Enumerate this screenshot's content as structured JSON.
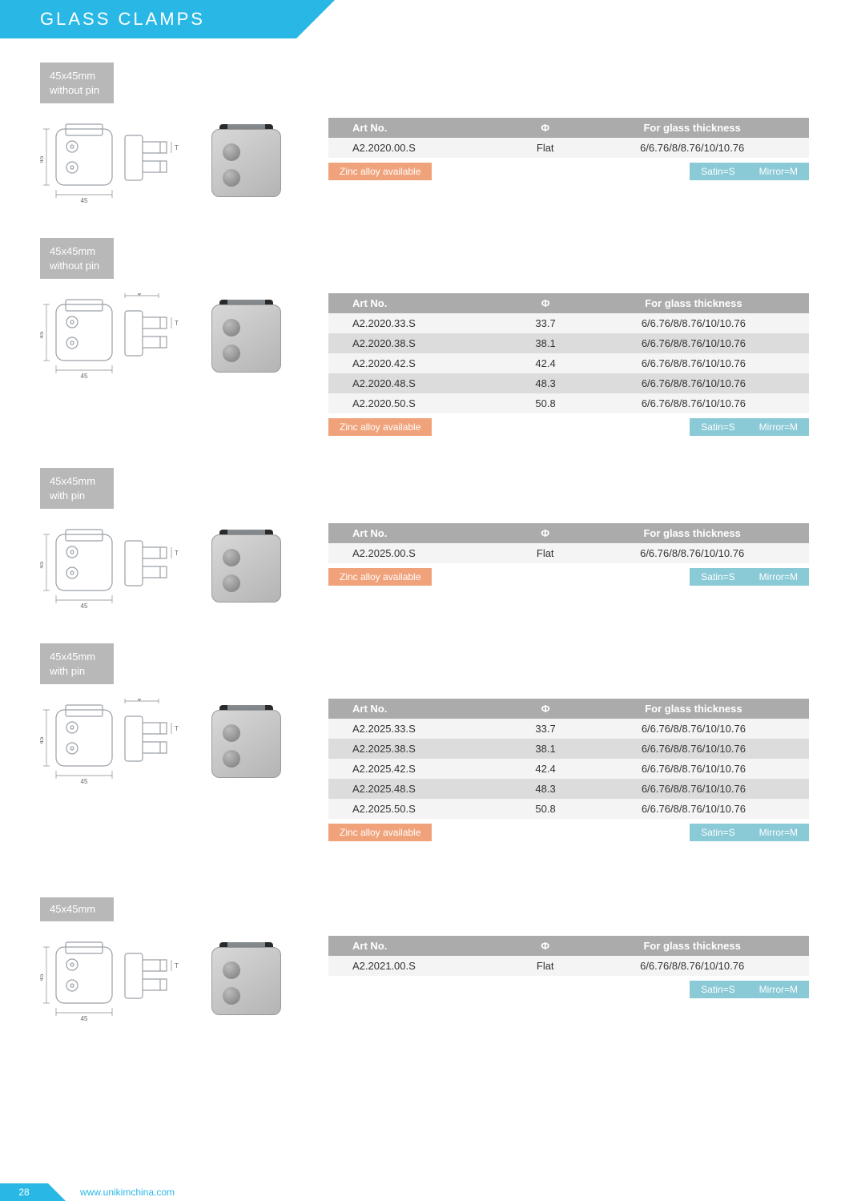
{
  "page": {
    "title": "GLASS  CLAMPS",
    "page_number": "28",
    "footer_url": "www.unikimchina.com"
  },
  "colors": {
    "brand_cyan": "#29b8e5",
    "badge_grey": "#b8b8b8",
    "table_header": "#ababab",
    "row_light": "#f4f4f4",
    "row_dark": "#dcdcdc",
    "zinc_orange": "#f0a27b",
    "finish_teal": "#8ac9d6"
  },
  "common": {
    "col_artno": "Art No.",
    "col_phi": "Φ",
    "col_thickness": "For glass thickness",
    "zinc_label": "Zinc alloy available",
    "satin_label": "Satin=S",
    "mirror_label": "Mirror=M",
    "dim_w": "45",
    "dim_h": "45",
    "dim_t": "T",
    "dim_phi": "ϕ"
  },
  "sections": [
    {
      "badge_line1": "45x45mm",
      "badge_line2": "without pin",
      "show_phi_dim": false,
      "show_zinc": true,
      "rows": [
        {
          "artno": "A2.2020.00.S",
          "phi": "Flat",
          "thick": "6/6.76/8/8.76/10/10.76"
        }
      ]
    },
    {
      "badge_line1": "45x45mm",
      "badge_line2": "without pin",
      "show_phi_dim": true,
      "show_zinc": true,
      "rows": [
        {
          "artno": "A2.2020.33.S",
          "phi": "33.7",
          "thick": "6/6.76/8/8.76/10/10.76"
        },
        {
          "artno": "A2.2020.38.S",
          "phi": "38.1",
          "thick": "6/6.76/8/8.76/10/10.76"
        },
        {
          "artno": "A2.2020.42.S",
          "phi": "42.4",
          "thick": "6/6.76/8/8.76/10/10.76"
        },
        {
          "artno": "A2.2020.48.S",
          "phi": "48.3",
          "thick": "6/6.76/8/8.76/10/10.76"
        },
        {
          "artno": "A2.2020.50.S",
          "phi": "50.8",
          "thick": "6/6.76/8/8.76/10/10.76"
        }
      ]
    },
    {
      "badge_line1": "45x45mm",
      "badge_line2": "with pin",
      "show_phi_dim": false,
      "show_zinc": true,
      "rows": [
        {
          "artno": "A2.2025.00.S",
          "phi": "Flat",
          "thick": "6/6.76/8/8.76/10/10.76"
        }
      ]
    },
    {
      "badge_line1": "45x45mm",
      "badge_line2": "with pin",
      "show_phi_dim": true,
      "show_zinc": true,
      "rows": [
        {
          "artno": "A2.2025.33.S",
          "phi": "33.7",
          "thick": "6/6.76/8/8.76/10/10.76"
        },
        {
          "artno": "A2.2025.38.S",
          "phi": "38.1",
          "thick": "6/6.76/8/8.76/10/10.76"
        },
        {
          "artno": "A2.2025.42.S",
          "phi": "42.4",
          "thick": "6/6.76/8/8.76/10/10.76"
        },
        {
          "artno": "A2.2025.48.S",
          "phi": "48.3",
          "thick": "6/6.76/8/8.76/10/10.76"
        },
        {
          "artno": "A2.2025.50.S",
          "phi": "50.8",
          "thick": "6/6.76/8/8.76/10/10.76"
        }
      ]
    },
    {
      "badge_line1": "45x45mm",
      "badge_line2": "",
      "show_phi_dim": false,
      "show_zinc": false,
      "rows": [
        {
          "artno": "A2.2021.00.S",
          "phi": "Flat",
          "thick": "6/6.76/8/8.76/10/10.76"
        }
      ]
    }
  ]
}
